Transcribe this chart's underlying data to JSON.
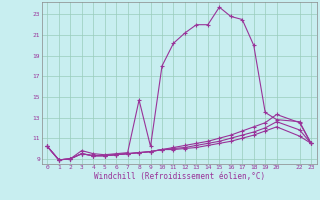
{
  "title": "",
  "xlabel": "Windchill (Refroidissement éolien,°C)",
  "ylabel": "",
  "background_color": "#c8eef0",
  "grid_color": "#99ccbb",
  "line_color": "#993399",
  "marker": "+",
  "xlim": [
    -0.5,
    23.5
  ],
  "ylim": [
    8.5,
    24.2
  ],
  "xticks": [
    0,
    1,
    2,
    3,
    4,
    5,
    6,
    7,
    8,
    9,
    10,
    11,
    12,
    13,
    14,
    15,
    16,
    17,
    18,
    19,
    20,
    22,
    23
  ],
  "yticks": [
    9,
    11,
    13,
    15,
    17,
    19,
    21,
    23
  ],
  "series1_x": [
    0,
    1,
    2,
    3,
    4,
    5,
    6,
    7,
    8,
    9,
    10,
    11,
    12,
    13,
    14,
    15,
    16,
    17,
    18,
    19,
    20,
    22,
    23
  ],
  "series1_y": [
    10.2,
    8.9,
    9.0,
    9.8,
    9.5,
    9.4,
    9.5,
    9.6,
    14.7,
    10.2,
    18.0,
    20.2,
    21.2,
    22.0,
    22.0,
    23.7,
    22.8,
    22.5,
    20.0,
    13.5,
    12.8,
    12.6,
    10.5
  ],
  "series2_x": [
    0,
    1,
    2,
    3,
    4,
    5,
    6,
    7,
    8,
    9,
    10,
    11,
    12,
    13,
    14,
    15,
    16,
    17,
    18,
    19,
    20,
    22,
    23
  ],
  "series2_y": [
    10.2,
    8.9,
    9.0,
    9.5,
    9.3,
    9.3,
    9.4,
    9.5,
    9.6,
    9.7,
    9.9,
    10.1,
    10.3,
    10.5,
    10.7,
    11.0,
    11.3,
    11.7,
    12.1,
    12.5,
    13.3,
    12.5,
    10.5
  ],
  "series3_x": [
    0,
    1,
    2,
    3,
    4,
    5,
    6,
    7,
    8,
    9,
    10,
    11,
    12,
    13,
    14,
    15,
    16,
    17,
    18,
    19,
    20,
    22,
    23
  ],
  "series3_y": [
    10.2,
    8.9,
    9.0,
    9.5,
    9.3,
    9.3,
    9.4,
    9.5,
    9.6,
    9.7,
    9.9,
    10.0,
    10.1,
    10.3,
    10.5,
    10.7,
    11.0,
    11.3,
    11.6,
    12.0,
    12.6,
    11.8,
    10.5
  ],
  "series4_x": [
    0,
    1,
    2,
    3,
    4,
    5,
    6,
    7,
    8,
    9,
    10,
    11,
    12,
    13,
    14,
    15,
    16,
    17,
    18,
    19,
    20,
    22,
    23
  ],
  "series4_y": [
    10.2,
    8.9,
    9.0,
    9.5,
    9.3,
    9.3,
    9.4,
    9.5,
    9.6,
    9.7,
    9.9,
    9.9,
    10.0,
    10.1,
    10.3,
    10.5,
    10.7,
    11.0,
    11.3,
    11.7,
    12.1,
    11.2,
    10.5
  ]
}
